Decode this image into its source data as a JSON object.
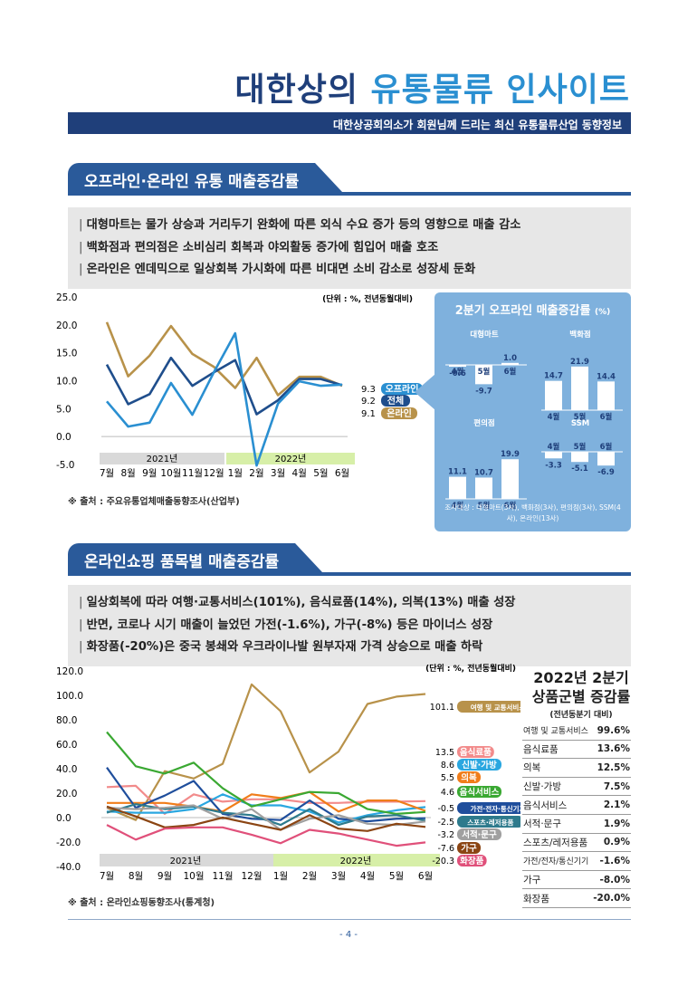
{
  "header": {
    "title_main": "대한상의 ",
    "title_highlight": "유통물류 인사이트",
    "subtitle": "대한상공회의소가 회원님께 드리는 최신 유통물류산업 동향정보"
  },
  "section1": {
    "heading": "오프라인·온라인 유통 매출증감률",
    "summary": [
      "대형마트는 물가 상승과 거리두기 완화에 따른 외식 수요 증가 등의 영향으로 매출 감소",
      "백화점과 편의점은 소비심리 회복과 야외활동 증가에 힘입어 매출 호조",
      "온라인은 엔데믹으로 일상회복 가시화에 따른 비대면 소비 감소로 성장세 둔화"
    ],
    "unit_note": "(단위 : %, 전년동월대비)",
    "year_labels": [
      "2021년",
      "2022년"
    ],
    "source": "※ 출처 : 주요유통업체매출동향조사(산업부)",
    "end_labels": [
      {
        "value": "9.3",
        "name": "오프라인",
        "color": "#2a8fd1"
      },
      {
        "value": "9.2",
        "name": "전체",
        "color": "#1f4e8c"
      },
      {
        "value": "9.1",
        "name": "온라인",
        "color": "#b8924a"
      }
    ],
    "panel": {
      "title": "2분기 오프라인 매출증감률",
      "title_unit": "(%)",
      "months": [
        "4월",
        "5월",
        "6월"
      ],
      "groups": [
        {
          "name": "대형마트",
          "values": [
            "-0.6",
            "-9.7",
            "1.0"
          ]
        },
        {
          "name": "백화점",
          "values": [
            "14.7",
            "21.9",
            "14.4"
          ]
        },
        {
          "name": "편의점",
          "values": [
            "11.1",
            "10.7",
            "19.9"
          ]
        },
        {
          "name": "SSM",
          "values": [
            "-3.3",
            "-5.1",
            "-6.9"
          ]
        }
      ],
      "note": "조사대상 : 대형마트(3사), 백화점(3사), 편의점(3사), SSM(4사), 온라인(13사)"
    }
  },
  "section2": {
    "heading": "온라인쇼핑 품목별 매출증감률",
    "summary": [
      "일상회복에 따라 여행·교통서비스(101%), 음식료품(14%), 의복(13%) 매출 성장",
      "반면, 코로나 시기 매출이 늘었던 가전(-1.6%), 가구(-8%) 등은 마이너스 성장",
      "화장품(-20%)은 중국 봉쇄와 우크라이나발 원부자재 가격 상승으로 매출 하락"
    ],
    "unit_note": "(단위 : %, 전년동월대비)",
    "year_labels": [
      "2021년",
      "2022년"
    ],
    "source": "※ 출처 : 온라인쇼핑동향조사(통계청)",
    "end_labels": [
      {
        "value": "101.1",
        "name": "여행 및 교통서비스",
        "color": "#b8924a"
      },
      {
        "value": "13.5",
        "name": "음식료품",
        "color": "#f28b8b"
      },
      {
        "value": "8.6",
        "name": "신발·가방",
        "color": "#2aa7e0"
      },
      {
        "value": "5.5",
        "name": "의복",
        "color": "#f07d1a"
      },
      {
        "value": "4.6",
        "name": "음식서비스",
        "color": "#3aa832"
      },
      {
        "value": "-0.5",
        "name": "가전·전자·통신기기",
        "color": "#1f4e9c"
      },
      {
        "value": "-2.5",
        "name": "스포츠·레저용품",
        "color": "#2d7a8c"
      },
      {
        "value": "-3.2",
        "name": "서적·문구",
        "color": "#a0a0a0"
      },
      {
        "value": "-7.6",
        "name": "가구",
        "color": "#8b4513"
      },
      {
        "value": "-20.3",
        "name": "화장품",
        "color": "#e0507a"
      }
    ],
    "table": {
      "title_line1": "2022년 2분기",
      "title_line2": "상품군별 증감률",
      "subtitle": "(전년동분기 대비)",
      "rows": [
        {
          "item": "여행 및 교통서비스",
          "value": "99.6%"
        },
        {
          "item": "음식료품",
          "value": "13.6%"
        },
        {
          "item": "의복",
          "value": "12.5%"
        },
        {
          "item": "신발·가방",
          "value": "7.5%"
        },
        {
          "item": "음식서비스",
          "value": "2.1%"
        },
        {
          "item": "서적·문구",
          "value": "1.9%"
        },
        {
          "item": "스포츠/레저용품",
          "value": "0.9%"
        },
        {
          "item": "가전/전자/통신기기",
          "value": "-1.6%"
        },
        {
          "item": "가구",
          "value": "-8.0%"
        },
        {
          "item": "화장품",
          "value": "-20.0%"
        }
      ]
    }
  },
  "page_number": "- 4 -",
  "chart_data": [
    {
      "type": "line",
      "x": [
        "7월",
        "8월",
        "9월",
        "10월",
        "11월",
        "12월",
        "1월",
        "2월",
        "3월",
        "4월",
        "5월",
        "6월"
      ],
      "ylim": [
        -5,
        25
      ],
      "yticks": [
        "25.0",
        "20.0",
        "15.0",
        "10.0",
        "5.0",
        "0.0",
        "-5.0"
      ],
      "series": [
        {
          "name": "온라인",
          "color": "#b8924a",
          "values": [
            20.5,
            10.8,
            14.5,
            19.8,
            14.8,
            12.5,
            8.7,
            14.1,
            7.4,
            10.7,
            10.7,
            9.1
          ]
        },
        {
          "name": "전체",
          "color": "#1f4e8c",
          "values": [
            12.9,
            5.8,
            7.6,
            14.1,
            9.1,
            11.5,
            13.7,
            4.0,
            6.5,
            10.3,
            10.3,
            9.2
          ]
        },
        {
          "name": "오프라인",
          "color": "#2a8fd1",
          "values": [
            6.3,
            1.8,
            2.5,
            9.6,
            3.9,
            11.5,
            18.5,
            -5.2,
            5.9,
            9.9,
            9.1,
            9.3
          ]
        }
      ]
    },
    {
      "type": "line",
      "x": [
        "7월",
        "8월",
        "9월",
        "10월",
        "11월",
        "12월",
        "1월",
        "2월",
        "3월",
        "4월",
        "5월",
        "6월"
      ],
      "ylim": [
        -40,
        120
      ],
      "yticks": [
        "120.0",
        "100.0",
        "80.0",
        "60.0",
        "40.0",
        "20.0",
        "0.0",
        "-20.0",
        "-40.0"
      ],
      "series": [
        {
          "name": "여행 및 교통서비스",
          "color": "#b8924a",
          "values": [
            8,
            -2,
            38,
            32,
            44,
            109,
            87,
            37,
            54,
            93,
            99,
            101.1
          ]
        },
        {
          "name": "음식료품",
          "color": "#f28b8b",
          "values": [
            25,
            26,
            3,
            19,
            13,
            15,
            15,
            12,
            12,
            13,
            13,
            13.5
          ]
        },
        {
          "name": "신발·가방",
          "color": "#2aa7e0",
          "values": [
            5,
            4,
            4,
            7,
            19,
            10,
            10,
            5,
            -4,
            2,
            6,
            8.6
          ]
        },
        {
          "name": "의복",
          "color": "#f07d1a",
          "values": [
            12,
            12,
            12,
            9,
            5,
            19,
            16,
            21,
            5,
            14,
            14,
            5.5
          ]
        },
        {
          "name": "음식서비스",
          "color": "#3aa832",
          "values": [
            70,
            42,
            36,
            45,
            24,
            9,
            15,
            21,
            20,
            7,
            3,
            4.6
          ]
        },
        {
          "name": "가전·전자·통신기기",
          "color": "#1f4e9c",
          "values": [
            41,
            8,
            18,
            30,
            3,
            -1,
            -2,
            14,
            -1,
            -3,
            -1,
            -0.5
          ]
        },
        {
          "name": "스포츠·레저용품",
          "color": "#2d7a8c",
          "values": [
            4,
            11,
            7,
            9,
            4,
            2,
            -6,
            7,
            -6,
            1,
            2,
            -2.5
          ]
        },
        {
          "name": "서적·문구",
          "color": "#a0a0a0",
          "values": [
            8,
            7,
            8,
            10,
            -1,
            7,
            -10,
            -1,
            2,
            -5,
            -6,
            -3.2
          ]
        },
        {
          "name": "가구",
          "color": "#8b4513",
          "values": [
            9,
            1,
            -8,
            -6,
            0,
            -5,
            -10,
            2,
            -9,
            -11,
            -5,
            -7.6
          ]
        },
        {
          "name": "화장품",
          "color": "#e0507a",
          "values": [
            -6,
            -18,
            -9,
            -8,
            -8,
            -14,
            -21,
            -10,
            -13,
            -18,
            -23,
            -20.3
          ]
        }
      ]
    }
  ]
}
